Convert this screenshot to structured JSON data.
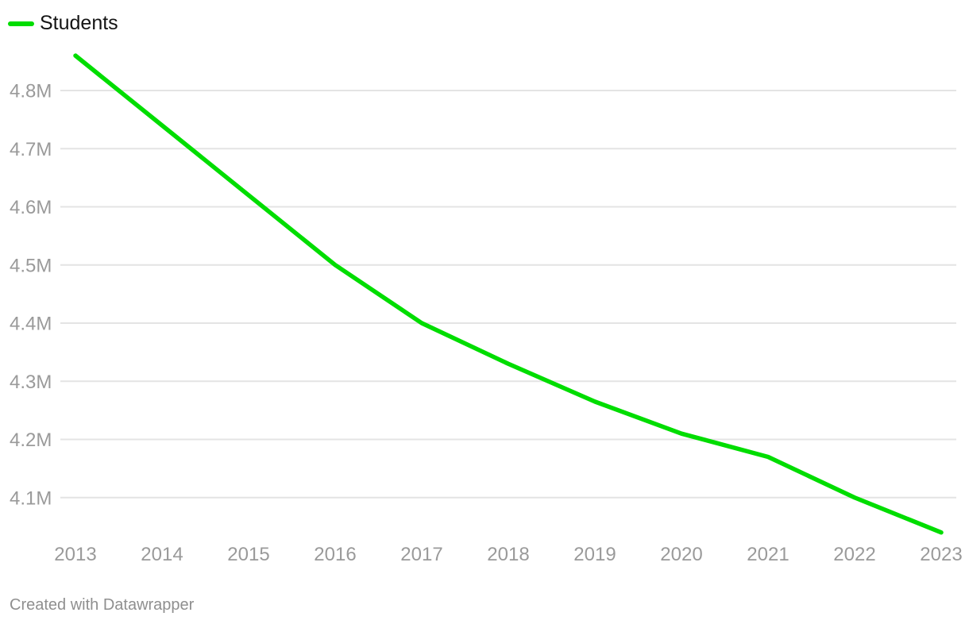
{
  "legend": {
    "label": "Students"
  },
  "attribution": {
    "text": "Created with Datawrapper"
  },
  "colors": {
    "line": "#00dd00",
    "grid": "#e4e4e4",
    "tick_label": "#9a9a9a",
    "legend_text": "#141414",
    "attribution_text": "#8f8f8f",
    "background": "#ffffff"
  },
  "chart_data": {
    "type": "line",
    "title": "",
    "xlabel": "",
    "ylabel": "",
    "unit": "millions of students",
    "x": [
      2013,
      2014,
      2015,
      2016,
      2017,
      2018,
      2019,
      2020,
      2021,
      2022,
      2023
    ],
    "x_tick_labels": [
      "2013",
      "2014",
      "2015",
      "2016",
      "2017",
      "2018",
      "2019",
      "2020",
      "2021",
      "2022",
      "2023"
    ],
    "series": [
      {
        "name": "Students",
        "values": [
          4.86,
          4.74,
          4.62,
          4.5,
          4.4,
          4.33,
          4.265,
          4.21,
          4.17,
          4.1,
          4.04
        ]
      }
    ],
    "y_ticks": {
      "values": [
        4.1,
        4.2,
        4.3,
        4.4,
        4.5,
        4.6,
        4.7,
        4.8
      ],
      "labels": [
        "4.1M",
        "4.2M",
        "4.3M",
        "4.4M",
        "4.5M",
        "4.6M",
        "4.7M",
        "4.8M"
      ]
    },
    "ylim": [
      4.0,
      4.9
    ],
    "grid": "horizontal-only",
    "legend_position": "top-left"
  }
}
